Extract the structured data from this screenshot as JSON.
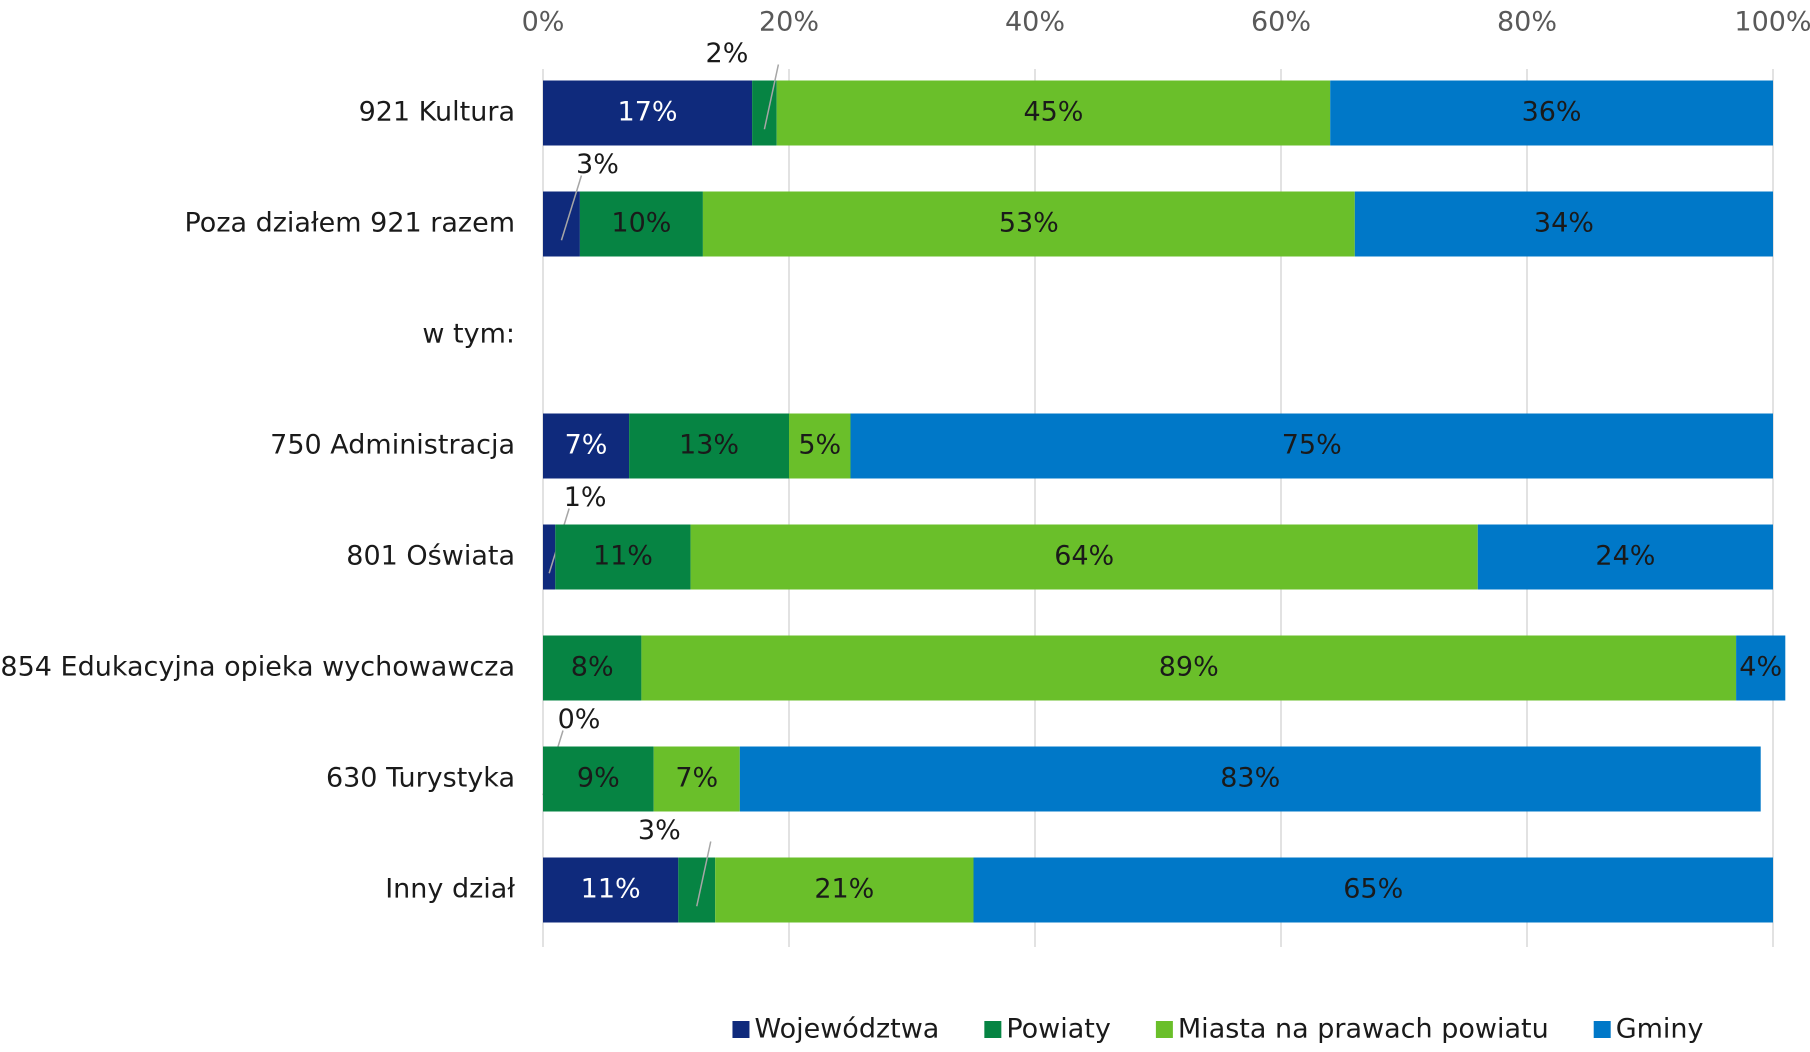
{
  "chart_data": {
    "type": "bar",
    "orientation": "horizontal",
    "stacked": true,
    "categories": [
      "921 Kultura",
      "Poza działem 921 razem",
      "w tym:",
      "750 Administracja",
      "801 Oświata",
      "854 Edukacyjna opieka wychowawcza",
      "630 Turystyka",
      "Inny dział"
    ],
    "series": [
      {
        "name": "Województwa",
        "color": "#0f2a7c",
        "values": [
          17,
          3,
          null,
          7,
          1,
          null,
          0,
          11
        ],
        "value_labels": [
          "17%",
          "3%",
          null,
          "7%",
          "1%",
          null,
          "0%",
          "11%"
        ]
      },
      {
        "name": "Powiaty",
        "color": "#068443",
        "values": [
          2,
          10,
          null,
          13,
          11,
          8,
          9,
          3
        ],
        "value_labels": [
          "2%",
          "10%",
          null,
          "13%",
          "11%",
          "8%",
          "9%",
          "3%"
        ]
      },
      {
        "name": "Miasta na prawach powiatu",
        "color": "#6abf2a",
        "values": [
          45,
          53,
          null,
          5,
          64,
          89,
          7,
          21
        ],
        "value_labels": [
          "45%",
          "53%",
          null,
          "5%",
          "64%",
          "89%",
          "7%",
          "21%"
        ]
      },
      {
        "name": "Gminy",
        "color": "#0078c8",
        "values": [
          36,
          34,
          null,
          75,
          24,
          4,
          83,
          65
        ],
        "value_labels": [
          "36%",
          "34%",
          null,
          "75%",
          "24%",
          "4%",
          "83%",
          "65%"
        ]
      }
    ],
    "xlim": [
      0,
      100
    ],
    "xticks": [
      {
        "value": 0,
        "label": "0%"
      },
      {
        "value": 20,
        "label": "20%"
      },
      {
        "value": 40,
        "label": "40%"
      },
      {
        "value": 60,
        "label": "60%"
      },
      {
        "value": 80,
        "label": "80%"
      },
      {
        "value": 100,
        "label": "100%"
      }
    ],
    "grid": true,
    "legend": "bottom"
  }
}
